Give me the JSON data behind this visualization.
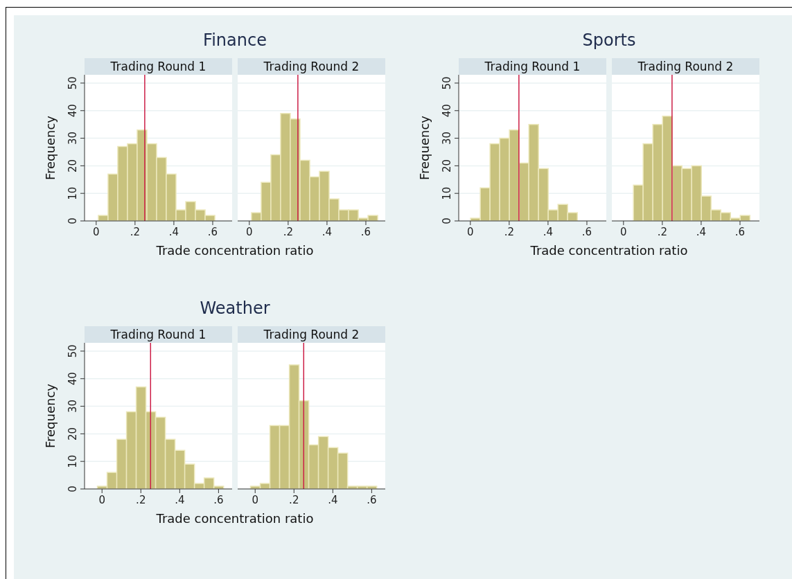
{
  "chart_data": [
    {
      "type": "histogram",
      "title": "Finance",
      "subtitle": "Trading Round 1",
      "xlabel": "Trade concentration ratio",
      "ylabel": "Frequency",
      "bins": [
        0.01,
        0.06,
        0.11,
        0.16,
        0.21,
        0.26,
        0.31,
        0.36,
        0.41,
        0.46,
        0.51,
        0.56,
        0.61
      ],
      "values": [
        2,
        17,
        27,
        28,
        33,
        28,
        23,
        17,
        4,
        7,
        4,
        2
      ],
      "color": "#c8c27e",
      "xlim": [
        -0.06,
        0.7
      ],
      "xticks": [
        {
          "value": 0,
          "label": "0"
        },
        {
          "value": 0.2,
          "label": ".2"
        },
        {
          "value": 0.4,
          "label": ".4"
        },
        {
          "value": 0.6,
          "label": ".6"
        }
      ],
      "ylim": [
        0,
        53
      ],
      "yticks": [
        0,
        10,
        20,
        30,
        40,
        50
      ],
      "grid": "y",
      "ref_lines": [
        {
          "axis": "x",
          "value": 0.25,
          "color": "#cc1d46"
        }
      ]
    },
    {
      "type": "histogram",
      "subtitle": "Trading Round 2",
      "bins": [
        0.01,
        0.06,
        0.11,
        0.16,
        0.21,
        0.26,
        0.31,
        0.36,
        0.41,
        0.46,
        0.51,
        0.56,
        0.61,
        0.66
      ],
      "values": [
        3,
        14,
        24,
        39,
        37,
        22,
        16,
        18,
        8,
        4,
        4,
        1,
        2
      ],
      "color": "#c8c27e",
      "xlim": [
        -0.06,
        0.7
      ],
      "xticks": [
        {
          "value": 0,
          "label": "0"
        },
        {
          "value": 0.2,
          "label": ".2"
        },
        {
          "value": 0.4,
          "label": ".4"
        },
        {
          "value": 0.6,
          "label": ".6"
        }
      ],
      "ylim": [
        0,
        53
      ],
      "yticks": [
        0,
        10,
        20,
        30,
        40,
        50
      ],
      "grid": "y",
      "tick_labels": "x",
      "ref_lines": [
        {
          "axis": "x",
          "value": 0.25,
          "color": "#cc1d46"
        }
      ]
    },
    {
      "type": "histogram",
      "title": "Sports",
      "subtitle": "Trading Round 1",
      "xlabel": "Trade concentration ratio",
      "ylabel": "Frequency",
      "bins": [
        0,
        0.05,
        0.1,
        0.15,
        0.2,
        0.25,
        0.3,
        0.35,
        0.4,
        0.45,
        0.5,
        0.55
      ],
      "values": [
        1,
        12,
        28,
        30,
        33,
        21,
        35,
        19,
        4,
        6,
        3
      ],
      "color": "#c8c27e",
      "xlim": [
        -0.06,
        0.7
      ],
      "xticks": [
        {
          "value": 0,
          "label": "0"
        },
        {
          "value": 0.2,
          "label": ".2"
        },
        {
          "value": 0.4,
          "label": ".4"
        },
        {
          "value": 0.6,
          "label": ".6"
        }
      ],
      "ylim": [
        0,
        53
      ],
      "yticks": [
        0,
        10,
        20,
        30,
        40,
        50
      ],
      "grid": "y",
      "ref_lines": [
        {
          "axis": "x",
          "value": 0.25,
          "color": "#cc1d46"
        }
      ]
    },
    {
      "type": "histogram",
      "subtitle": "Trading Round 2",
      "bins": [
        0.05,
        0.1,
        0.15,
        0.2,
        0.25,
        0.3,
        0.35,
        0.4,
        0.45,
        0.5,
        0.55,
        0.6,
        0.65
      ],
      "values": [
        13,
        28,
        35,
        38,
        20,
        19,
        20,
        9,
        4,
        3,
        1,
        2
      ],
      "color": "#c8c27e",
      "xlim": [
        -0.06,
        0.7
      ],
      "xticks": [
        {
          "value": 0,
          "label": "0"
        },
        {
          "value": 0.2,
          "label": ".2"
        },
        {
          "value": 0.4,
          "label": ".4"
        },
        {
          "value": 0.6,
          "label": ".6"
        }
      ],
      "ylim": [
        0,
        53
      ],
      "yticks": [
        0,
        10,
        20,
        30,
        40,
        50
      ],
      "grid": "y",
      "tick_labels": "x",
      "ref_lines": [
        {
          "axis": "x",
          "value": 0.25,
          "color": "#cc1d46"
        }
      ]
    },
    {
      "type": "histogram",
      "title": "Weather",
      "subtitle": "Trading Round 1",
      "xlabel": "Trade concentration ratio",
      "ylabel": "Frequency",
      "bins": [
        -0.025,
        0.025,
        0.075,
        0.125,
        0.175,
        0.225,
        0.275,
        0.325,
        0.375,
        0.425,
        0.475,
        0.525,
        0.575,
        0.625
      ],
      "values": [
        1,
        6,
        18,
        28,
        37,
        28,
        26,
        18,
        14,
        9,
        2,
        4,
        1
      ],
      "color": "#c8c27e",
      "xlim": [
        -0.09,
        0.67
      ],
      "xticks": [
        {
          "value": 0,
          "label": "0"
        },
        {
          "value": 0.2,
          "label": ".2"
        },
        {
          "value": 0.4,
          "label": ".4"
        },
        {
          "value": 0.6,
          "label": ".6"
        }
      ],
      "ylim": [
        0,
        53
      ],
      "yticks": [
        0,
        10,
        20,
        30,
        40,
        50
      ],
      "grid": "y",
      "ref_lines": [
        {
          "axis": "x",
          "value": 0.25,
          "color": "#cc1d46"
        }
      ]
    },
    {
      "type": "histogram",
      "subtitle": "Trading Round 2",
      "bins": [
        -0.025,
        0.025,
        0.075,
        0.125,
        0.175,
        0.225,
        0.275,
        0.325,
        0.375,
        0.425,
        0.475,
        0.525,
        0.575,
        0.625
      ],
      "values": [
        1,
        2,
        23,
        23,
        45,
        32,
        16,
        19,
        15,
        13,
        1,
        1,
        1
      ],
      "color": "#c8c27e",
      "xlim": [
        -0.09,
        0.67
      ],
      "xticks": [
        {
          "value": 0,
          "label": "0"
        },
        {
          "value": 0.2,
          "label": ".2"
        },
        {
          "value": 0.4,
          "label": ".4"
        },
        {
          "value": 0.6,
          "label": ".6"
        }
      ],
      "ylim": [
        0,
        53
      ],
      "yticks": [
        0,
        10,
        20,
        30,
        40,
        50
      ],
      "grid": "y",
      "tick_labels": "x",
      "ref_lines": [
        {
          "axis": "x",
          "value": 0.25,
          "color": "#cc1d46"
        }
      ]
    }
  ]
}
